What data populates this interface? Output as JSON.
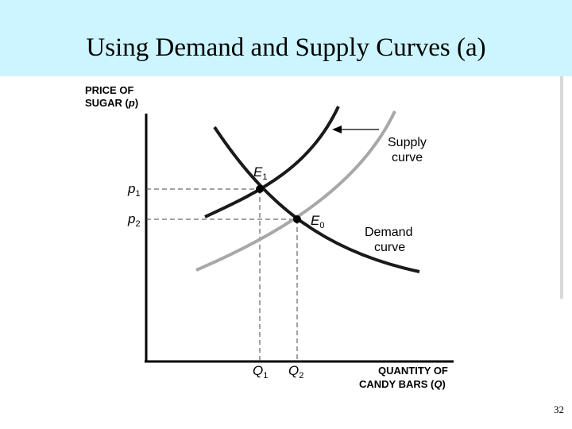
{
  "slide": {
    "title": "Using Demand and Supply Curves (a)",
    "page_number": "32"
  },
  "diagram": {
    "y_axis_label_line1": "PRICE OF",
    "y_axis_label_line2_prefix": "SUGAR (",
    "y_axis_label_var": "p",
    "y_axis_label_suffix": ")",
    "x_axis_label_line1": "QUANTITY OF",
    "x_axis_label_line2_prefix": "CANDY BARS (",
    "x_axis_label_var": "Q",
    "x_axis_label_suffix": ")",
    "supply_label_line1": "Supply",
    "supply_label_line2": "curve",
    "demand_label_line1": "Demand",
    "demand_label_line2": "curve",
    "p1_letter": "p",
    "p1_sub": "1",
    "p2_letter": "p",
    "p2_sub": "2",
    "q1_letter": "Q",
    "q1_sub": "1",
    "q2_letter": "Q",
    "q2_sub": "2",
    "e1_letter": "E",
    "e1_sub": "1",
    "e0_letter": "E",
    "e0_sub": "0",
    "colors": {
      "title_background": "#ccf5ff",
      "curve_dark": "#1a1a1a",
      "curve_gray": "#a8a8a8"
    }
  }
}
